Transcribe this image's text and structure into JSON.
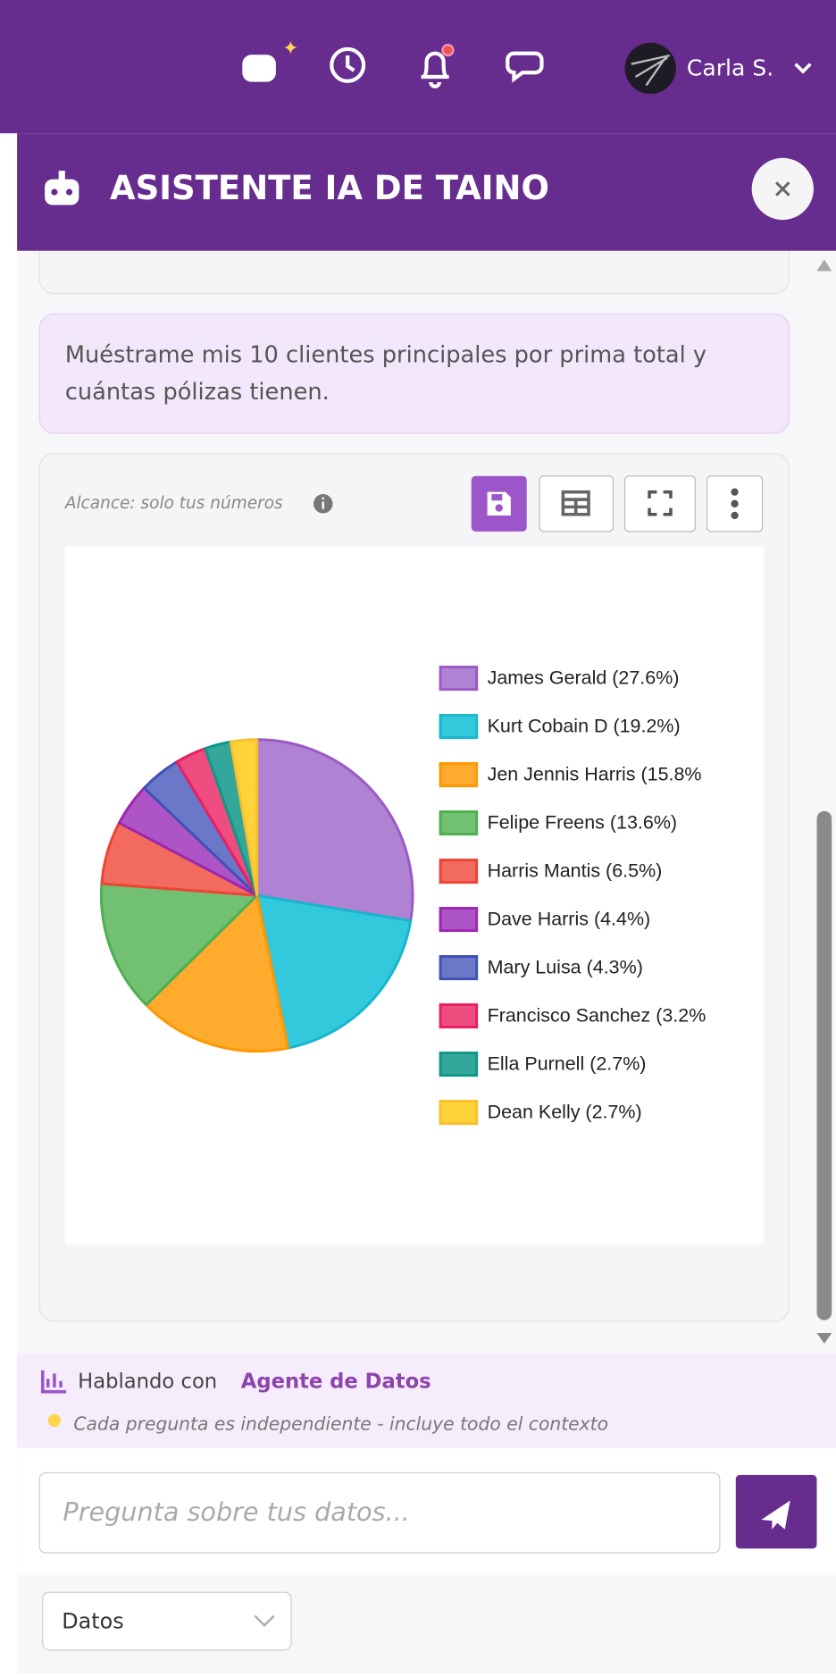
{
  "header": {
    "user": "Carla S."
  },
  "panel": {
    "title": "ASISTENTE IA DE TAINO"
  },
  "message": {
    "lines": [
      "Muéstrame mis 10 clientes principales por prima total y",
      "cuántas pólizas tienen."
    ]
  },
  "chart_card": {
    "scope": "Alcance: solo tus números"
  },
  "chart_data": {
    "type": "pie",
    "categories": [
      "James Gerald (27.6%)",
      "Kurt Cobain D (19.2%)",
      "Jen Jennis Harris (15.8%",
      "Felipe Freens (13.6%)",
      "Harris Mantis (6.5%)",
      "Dave Harris (4.4%)",
      "Mary Luisa (4.3%)",
      "Francisco Sanchez (3.2%",
      "Ella Purnell (2.7%)",
      "Dean Kelly (2.7%)"
    ],
    "values": [
      27.6,
      19.2,
      15.8,
      13.6,
      6.5,
      4.4,
      4.3,
      3.2,
      2.7,
      2.7
    ],
    "colors": [
      "#b082d4",
      "#33c9dc",
      "#ffab2e",
      "#72c072",
      "#f26b5e",
      "#ad55c6",
      "#6b78c9",
      "#ef4d80",
      "#33a89a",
      "#ffd23a"
    ],
    "border_colors": [
      "#9b59c6",
      "#18b6cc",
      "#ff9800",
      "#4caf50",
      "#ef4336",
      "#9c27b0",
      "#3f51b5",
      "#e91e63",
      "#11968a",
      "#fbc02d"
    ],
    "legend": "right"
  },
  "footer": {
    "prefix": "Hablando con",
    "agent": "Agente de Datos",
    "tip": "Cada pregunta es independiente - incluye todo el contexto"
  },
  "input": {
    "placeholder": "Pregunta sobre tus datos..."
  },
  "select": {
    "value": "Datos"
  }
}
